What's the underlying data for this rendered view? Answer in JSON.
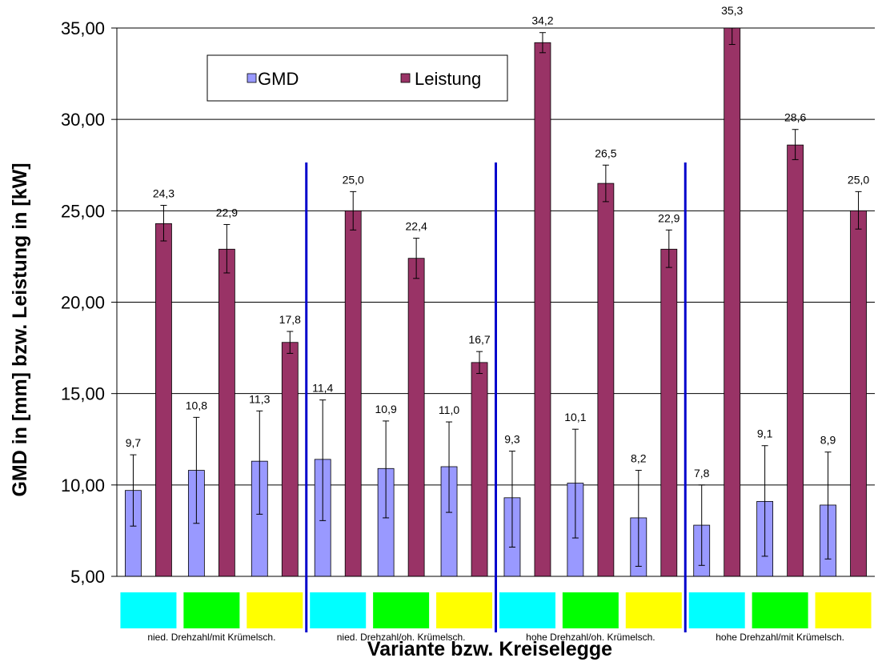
{
  "chart_data": {
    "type": "bar",
    "xlabel": "Variante bzw. Kreiselegge",
    "ylabel": "GMD in [mm] bzw. Leistung in [kW]",
    "ylim": [
      5,
      35
    ],
    "yticks": [
      "5,00",
      "10,00",
      "15,00",
      "20,00",
      "25,00",
      "30,00",
      "35,00"
    ],
    "ytick_values": [
      5,
      10,
      15,
      20,
      25,
      30,
      35
    ],
    "grid": true,
    "legend_position": "top-left",
    "group_labels": [
      "nied. Drehzahl/mit Krümelsch.",
      "nied. Drehzahl/oh. Krümelsch.",
      "hohe Drehzahl/oh. Krümelsch.",
      "hohe Drehzahl/mit Krümelsch."
    ],
    "category_colors": [
      "#00ffff",
      "#00ff00",
      "#ffff00",
      "#00ffff",
      "#00ff00",
      "#ffff00",
      "#00ffff",
      "#00ff00",
      "#ffff00",
      "#00ffff",
      "#00ff00",
      "#ffff00"
    ],
    "series": [
      {
        "name": "GMD",
        "color": "#9999ff",
        "values": [
          9.7,
          10.8,
          11.3,
          11.4,
          10.9,
          11.0,
          9.3,
          10.1,
          8.2,
          7.8,
          9.1,
          8.9
        ],
        "labels": [
          "9,7",
          "10,8",
          "11,3",
          "11,4",
          "10,9",
          "11,0",
          "9,3",
          "10,1",
          "8,2",
          "7,8",
          "9,1",
          "8,9"
        ],
        "err_high": [
          11.65,
          13.7,
          14.05,
          14.65,
          13.5,
          13.45,
          11.85,
          13.05,
          10.8,
          10.0,
          12.15,
          11.8
        ],
        "err_low": [
          7.75,
          7.9,
          8.4,
          8.05,
          8.2,
          8.5,
          6.6,
          7.1,
          5.55,
          5.6,
          6.1,
          5.95
        ]
      },
      {
        "name": "Leistung",
        "color": "#993366",
        "values": [
          24.3,
          22.9,
          17.8,
          25.0,
          22.4,
          16.7,
          34.2,
          26.5,
          22.9,
          35.3,
          28.6,
          25.0
        ],
        "labels": [
          "24,3",
          "22,9",
          "17,8",
          "25,0",
          "22,4",
          "16,7",
          "34,2",
          "26,5",
          "22,9",
          "35,3",
          "28,6",
          "25,0"
        ],
        "err_high": [
          25.3,
          24.25,
          18.4,
          26.05,
          23.5,
          17.3,
          34.75,
          27.5,
          23.95,
          35.3,
          29.45,
          26.05
        ],
        "err_low": [
          23.35,
          21.6,
          17.2,
          23.95,
          21.3,
          16.1,
          33.65,
          25.5,
          21.9,
          34.1,
          27.8,
          24.0
        ]
      }
    ],
    "separator_color": "#0000cc"
  }
}
